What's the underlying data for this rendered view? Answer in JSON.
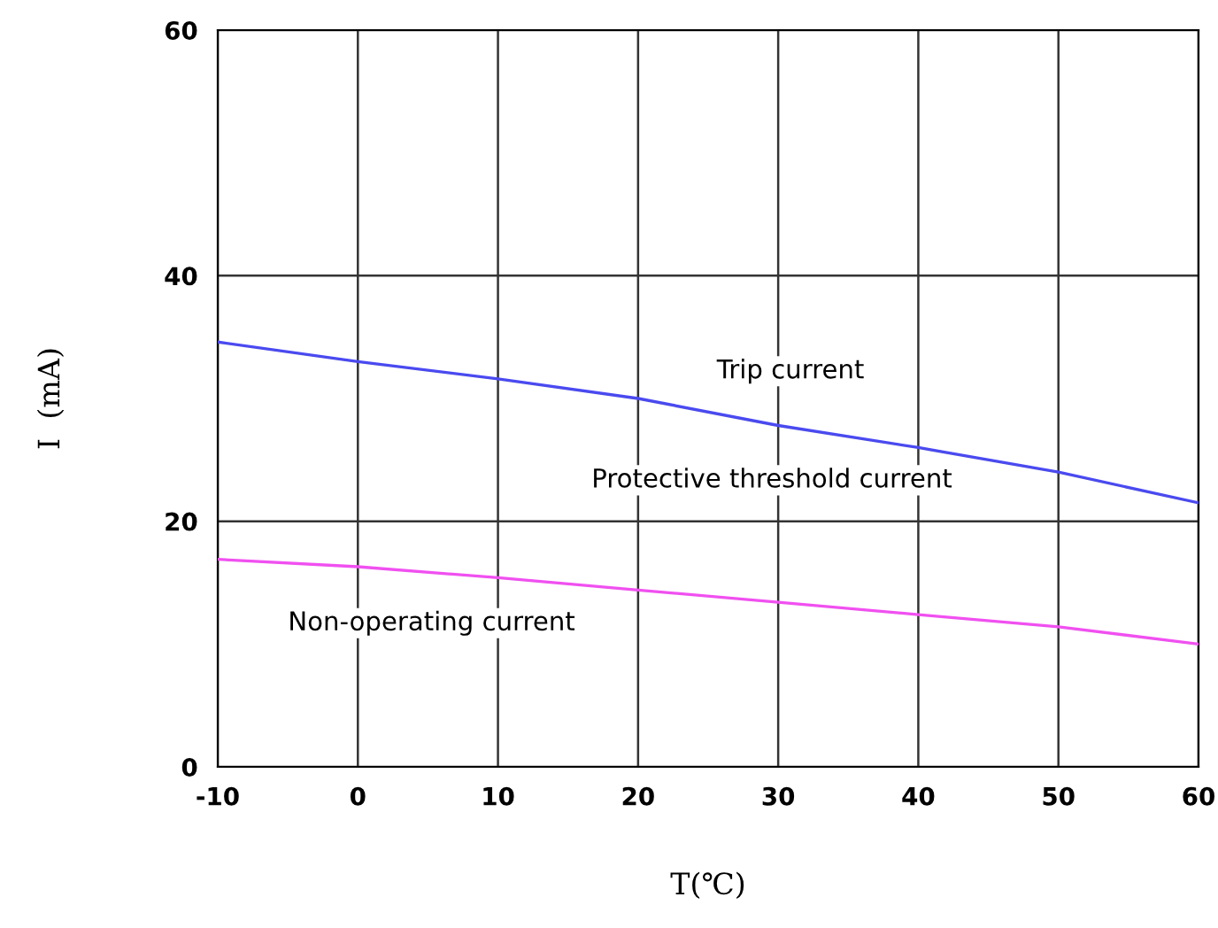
{
  "chart_data": {
    "type": "line",
    "xlabel": "T(℃)",
    "ylabel": "I  (mA)",
    "x": [
      -10,
      0,
      10,
      20,
      30,
      40,
      50,
      60
    ],
    "series": [
      {
        "color": "#4a4af0",
        "values": [
          34.6,
          33.0,
          31.6,
          30.0,
          27.8,
          26.0,
          24.0,
          21.5
        ]
      },
      {
        "color": "#f050f0",
        "values": [
          16.9,
          16.3,
          15.4,
          14.4,
          13.4,
          12.4,
          11.4,
          10.0
        ]
      }
    ],
    "annotations": [
      "Trip current",
      "Protective threshold current",
      "Non-operating current"
    ],
    "xlim": [
      -10,
      60
    ],
    "ylim": [
      0,
      60
    ],
    "xticks": [
      -10,
      0,
      10,
      20,
      30,
      40,
      50,
      60
    ],
    "yticks": [
      0,
      20,
      40,
      60
    ],
    "grid": true,
    "marker": "none",
    "line_style": "solid"
  }
}
